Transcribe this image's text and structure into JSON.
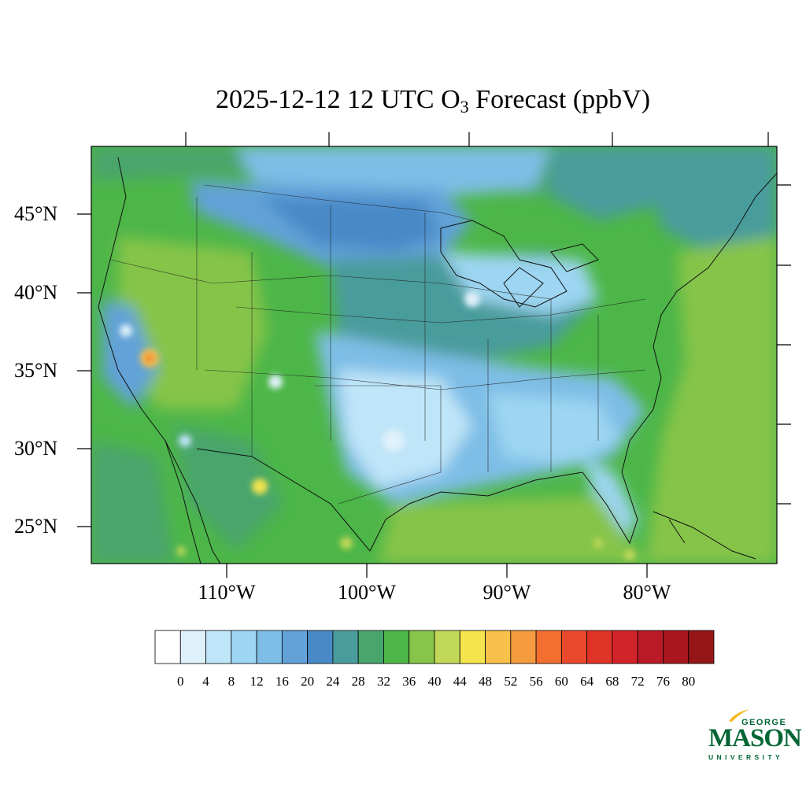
{
  "title": {
    "prefix": "2025-12-12 12 UTC O",
    "subscript": "3",
    "suffix": " Forecast (ppbV)"
  },
  "map": {
    "lat_labels": [
      "45°N",
      "40°N",
      "35°N",
      "30°N",
      "25°N"
    ],
    "lon_labels": [
      "110°W",
      "100°W",
      "90°W",
      "80°W"
    ]
  },
  "colorbar": {
    "colors": [
      "#ffffff",
      "#dff1fb",
      "#bfe5f8",
      "#9dd5f2",
      "#7ebde6",
      "#62a2d8",
      "#4a89c8",
      "#4a9c9c",
      "#48a56c",
      "#4cb648",
      "#86c44a",
      "#c2d858",
      "#f4e44e",
      "#f6c04a",
      "#f59b3f",
      "#f26f30",
      "#ea4a2c",
      "#e03328",
      "#d2232a",
      "#ba1a25",
      "#a9161f",
      "#951618"
    ],
    "labels": [
      "0",
      "4",
      "8",
      "12",
      "16",
      "20",
      "24",
      "28",
      "32",
      "36",
      "40",
      "44",
      "48",
      "52",
      "56",
      "60",
      "64",
      "68",
      "72",
      "76",
      "80"
    ]
  },
  "logo": {
    "line1": "GEORGE",
    "line2": "MASON",
    "line3": "UNIVERSITY",
    "color": "#006633",
    "accent": "#f2b81c"
  }
}
